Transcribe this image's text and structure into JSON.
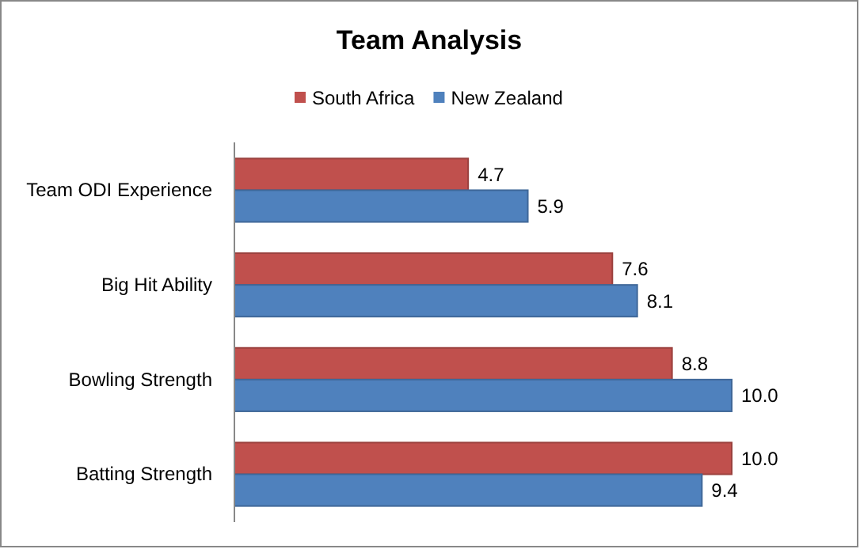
{
  "chart_data": {
    "type": "bar",
    "title": "Team Analysis",
    "orientation": "horizontal",
    "categories": [
      "Team ODI Experience",
      "Big Hit Ability",
      "Bowling Strength",
      "Batting Strength"
    ],
    "series": [
      {
        "name": "South Africa",
        "color": "#c0504d",
        "values": [
          4.7,
          7.6,
          8.8,
          10.0
        ],
        "value_labels": [
          "4.7",
          "7.6",
          "8.8",
          "10.0"
        ]
      },
      {
        "name": "New Zealand",
        "color": "#4f81bd",
        "values": [
          5.9,
          8.1,
          10.0,
          9.4
        ],
        "value_labels": [
          "5.9",
          "8.1",
          "10.0",
          "9.4"
        ]
      }
    ],
    "legend": "top",
    "grid": false
  }
}
